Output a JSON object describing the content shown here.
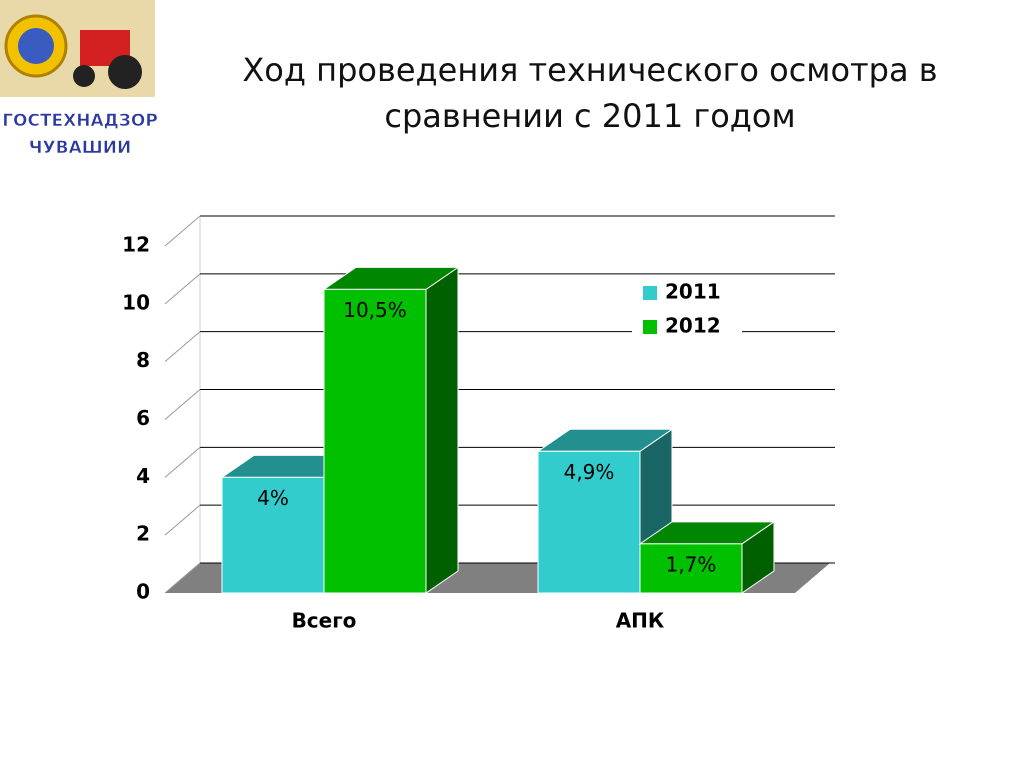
{
  "logo": {
    "lines": [
      "ГОСТЕХНАДЗОР",
      "ЧУВАШИИ"
    ]
  },
  "chart_data": {
    "type": "bar3d",
    "title": "Ход проведения технического осмотра в сравнении с 2011 годом",
    "categories": [
      "Всего",
      "АПК"
    ],
    "series": [
      {
        "name": "2011",
        "color": "#33cccc",
        "values": [
          4,
          4.9
        ],
        "value_labels": [
          "4%",
          "4,9%"
        ]
      },
      {
        "name": "2012",
        "color": "#00c000",
        "values": [
          10.5,
          1.7
        ],
        "value_labels": [
          "10,5%",
          "1,7%"
        ]
      }
    ],
    "ylim": [
      0,
      12
    ],
    "yticks": [
      0,
      2,
      4,
      6,
      8,
      10,
      12
    ],
    "grid": true,
    "legend": "right"
  }
}
